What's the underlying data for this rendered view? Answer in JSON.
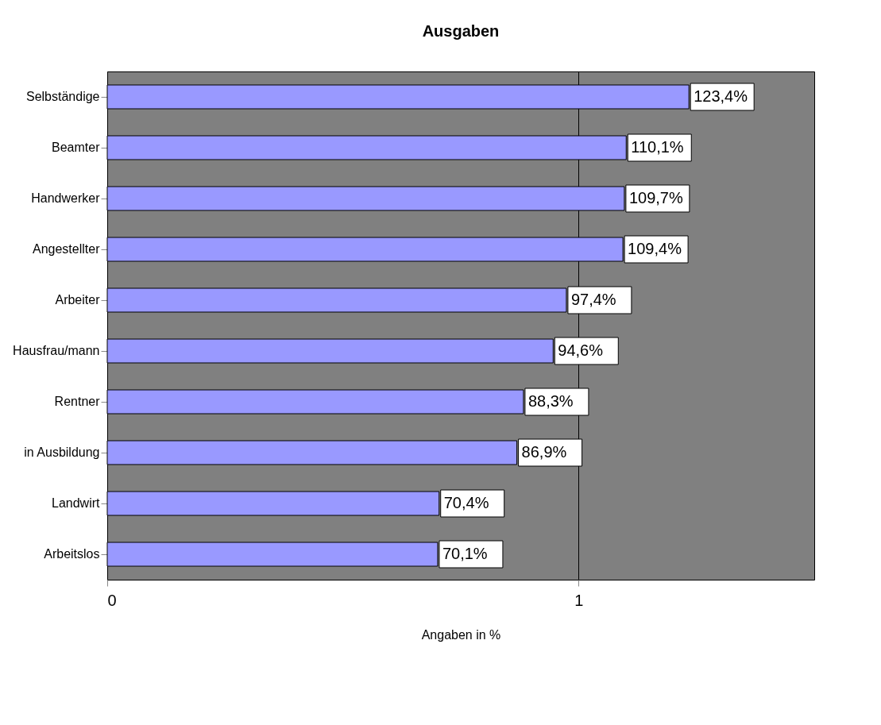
{
  "chart_data": {
    "type": "bar",
    "orientation": "horizontal",
    "title": "Ausgaben",
    "xlabel": "Angaben in %",
    "categories": [
      "Selbständige",
      "Beamter",
      "Handwerker",
      "Angestellter",
      "Arbeiter",
      "Hausfrau/mann",
      "Rentner",
      "in Ausbildung",
      "Landwirt",
      "Arbeitslos"
    ],
    "values": [
      1.234,
      1.101,
      1.097,
      1.094,
      0.974,
      0.946,
      0.883,
      0.869,
      0.704,
      0.701
    ],
    "value_labels": [
      "123,4%",
      "110,1%",
      "109,7%",
      "109,4%",
      "97,4%",
      "94,6%",
      "88,3%",
      "86,9%",
      "70,4%",
      "70,1%"
    ],
    "color": "#9999ff",
    "xlim": [
      0,
      1.5
    ],
    "xticks": [
      0,
      1
    ],
    "grid": "x"
  }
}
